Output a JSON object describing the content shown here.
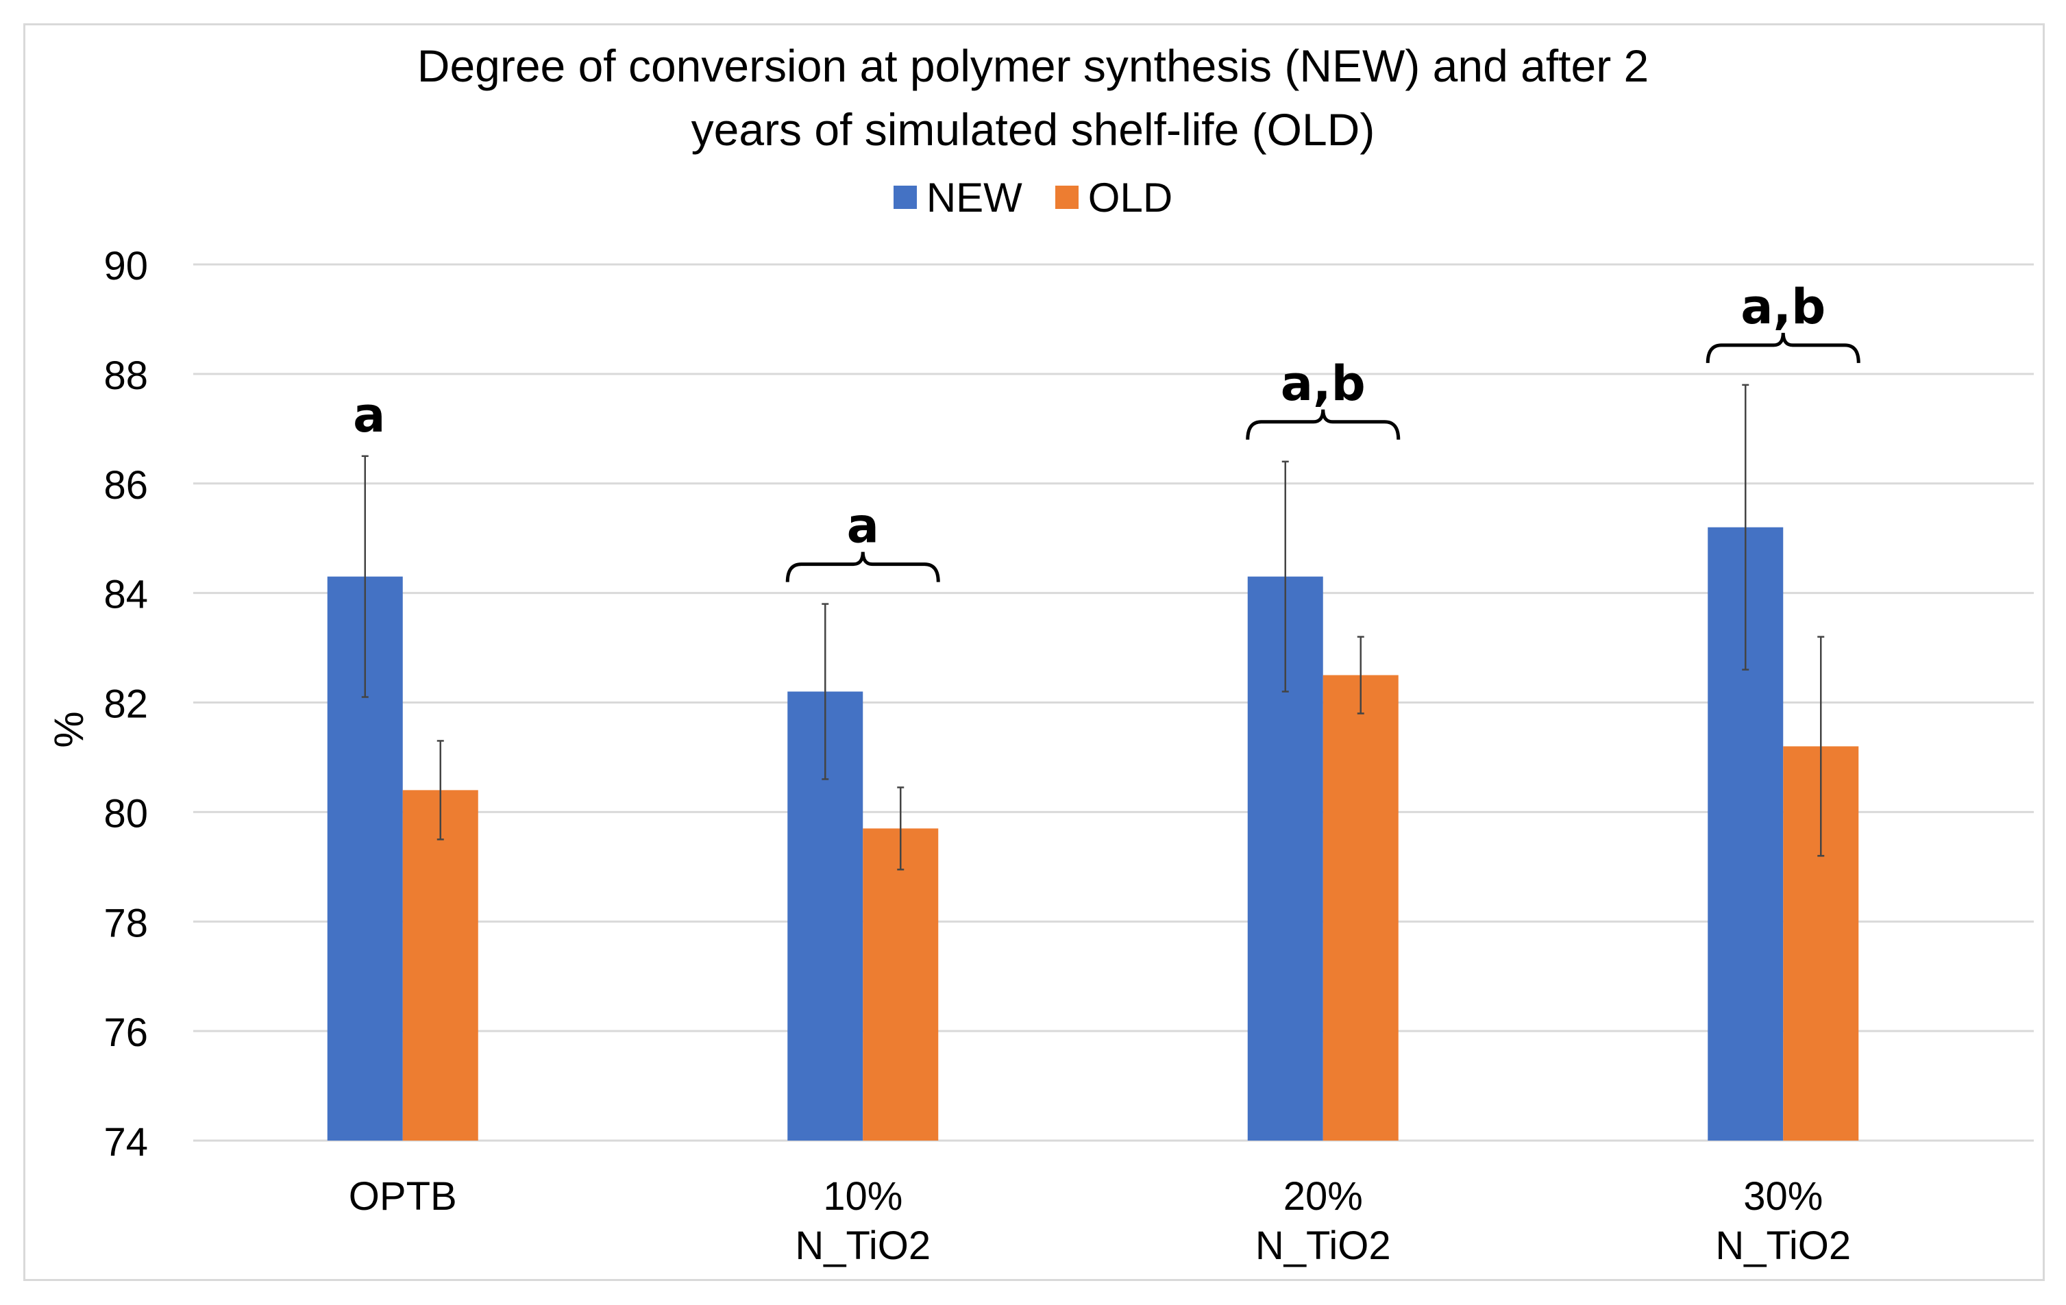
{
  "chart_data": {
    "type": "bar",
    "title_lines": [
      "Degree of conversion at polymer synthesis (NEW) and after 2",
      "years of simulated shelf-life (OLD)"
    ],
    "xlabel": "",
    "ylabel": "%",
    "ylim": [
      74,
      90
    ],
    "ytick_step": 2,
    "yticks": [
      "74",
      "76",
      "78",
      "80",
      "82",
      "84",
      "86",
      "88",
      "90"
    ],
    "grid": true,
    "legend_position": "top",
    "categories": [
      [
        "OPTB"
      ],
      [
        "10%",
        "N_TiO2"
      ],
      [
        "20%",
        "N_TiO2"
      ],
      [
        "30%",
        "N_TiO2"
      ]
    ],
    "series": [
      {
        "name": "NEW",
        "color": "#4472c4",
        "values": [
          84.3,
          82.2,
          84.3,
          85.2
        ],
        "errors": [
          2.2,
          1.6,
          2.1,
          2.6
        ]
      },
      {
        "name": "OLD",
        "color": "#ed7d31",
        "values": [
          80.4,
          79.7,
          82.5,
          81.2
        ],
        "errors": [
          0.9,
          0.75,
          0.7,
          2.0
        ]
      }
    ],
    "annotations": [
      {
        "category_index": 0,
        "text": "a",
        "bracket": false
      },
      {
        "category_index": 1,
        "text": "a",
        "bracket": true
      },
      {
        "category_index": 2,
        "text": "a,b",
        "bracket": true
      },
      {
        "category_index": 3,
        "text": "a,b",
        "bracket": true
      }
    ]
  }
}
